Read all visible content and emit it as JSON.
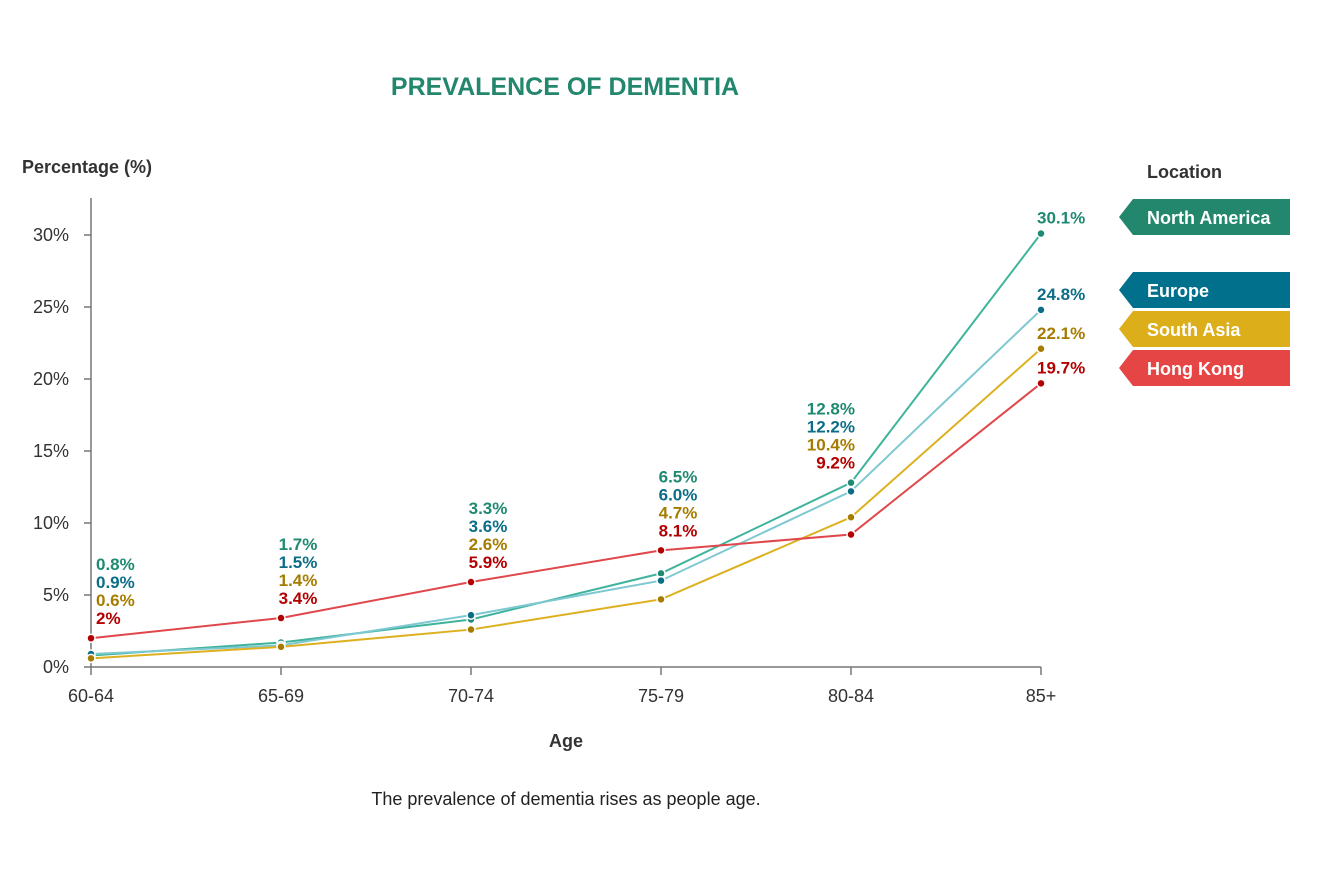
{
  "chart_data": {
    "type": "line",
    "title": "PREVALENCE OF DEMENTIA",
    "caption": "The prevalence of dementia rises as people age.",
    "xlabel": "Age",
    "ylabel": "Percentage (%)",
    "categories": [
      "60-64",
      "65-69",
      "70-74",
      "75-79",
      "80-84",
      "85+"
    ],
    "ylim": [
      0,
      32.5
    ],
    "yticks": [
      0,
      5,
      10,
      15,
      20,
      25,
      30
    ],
    "ytick_labels": [
      "0%",
      "5%",
      "10%",
      "15%",
      "20%",
      "25%",
      "30%"
    ],
    "grid": false,
    "legend": {
      "title": "Location",
      "placement": "right"
    },
    "series": [
      {
        "name": "North America",
        "values": [
          0.8,
          1.7,
          3.3,
          6.5,
          12.8,
          30.1
        ],
        "labels": [
          "0.8%",
          "1.7%",
          "3.3%",
          "6.5%",
          "12.8%",
          "30.1%"
        ],
        "line_color": "#3fb39b",
        "label_color": "#1f8a72",
        "legend_color": "#23876e"
      },
      {
        "name": "Europe",
        "values": [
          0.9,
          1.5,
          3.6,
          6.0,
          12.2,
          24.8
        ],
        "labels": [
          "0.9%",
          "1.5%",
          "3.6%",
          "6.0%",
          "12.2%",
          "24.8%"
        ],
        "line_color": "#7ec8d1",
        "label_color": "#0b6e86",
        "legend_color": "#00708c"
      },
      {
        "name": "South Asia",
        "values": [
          0.6,
          1.4,
          2.6,
          4.7,
          10.4,
          22.1
        ],
        "labels": [
          "0.6%",
          "1.4%",
          "2.6%",
          "4.7%",
          "10.4%",
          "22.1%"
        ],
        "line_color": "#ddb01f",
        "label_color": "#a67c00",
        "legend_color": "#dcae19"
      },
      {
        "name": "Hong Kong",
        "values": [
          2.0,
          3.4,
          5.9,
          8.1,
          9.2,
          19.7
        ],
        "labels": [
          "2%",
          "3.4%",
          "5.9%",
          "8.1%",
          "9.2%",
          "19.7%"
        ],
        "line_color": "#e0474c",
        "label_color": "#b30000",
        "legend_color": "#e54545"
      }
    ],
    "title_color": "#23876e"
  }
}
